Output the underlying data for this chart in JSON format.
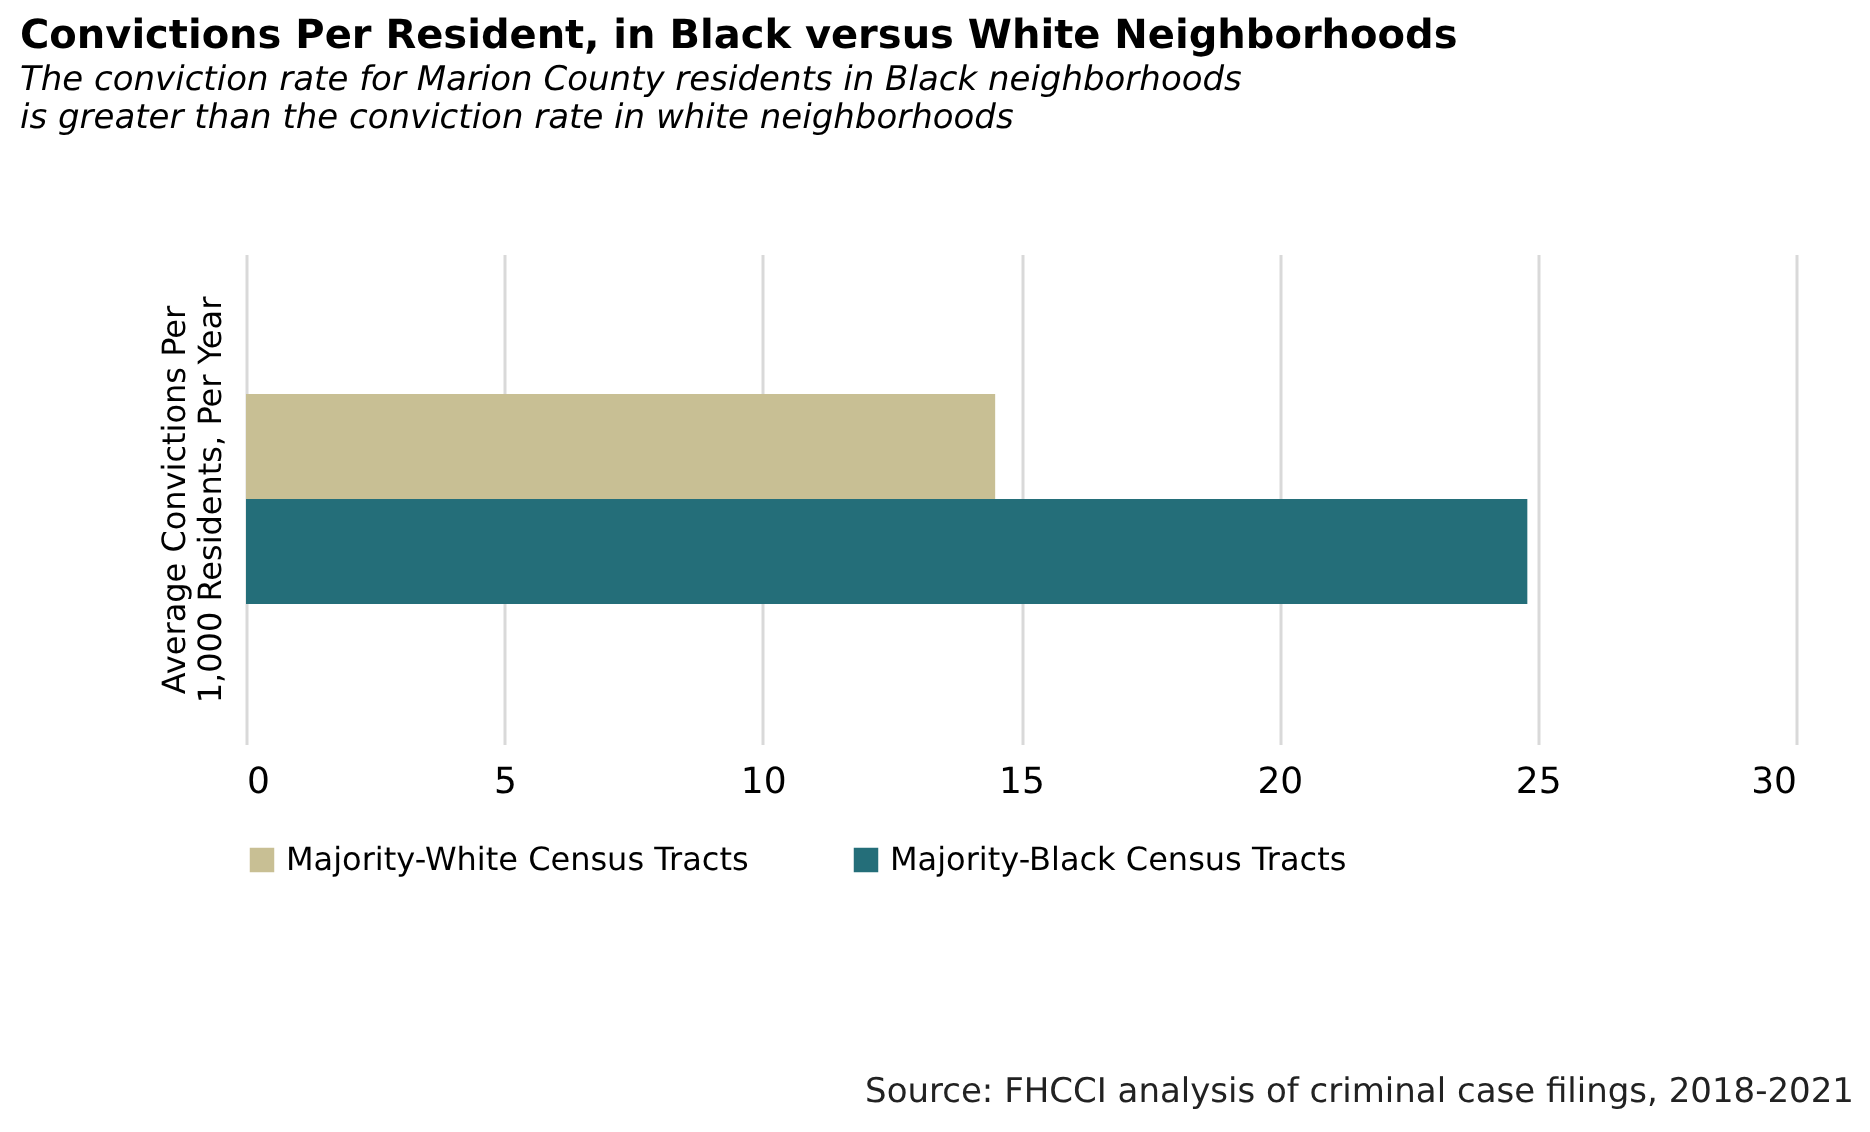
{
  "chart_data": {
    "type": "bar",
    "orientation": "horizontal",
    "title": "Convictions Per Resident, in Black versus White Neighborhoods",
    "subtitle": "The conviction rate for Marion County residents in Black neighborhoods is greater than the conviction rate in white neighborhoods",
    "ylabel": "Average Convictions Per 1,000 Residents, Per Year",
    "categories": [
      null
    ],
    "series": [
      {
        "name": "Majority-White Census Tracts",
        "color": "#c8bf94",
        "values": [
          14.5
        ]
      },
      {
        "name": "Majority-Black Census Tracts",
        "color": "#246e79",
        "values": [
          24.8
        ]
      }
    ],
    "xlim": [
      0,
      30
    ],
    "xticks": [
      0,
      5,
      10,
      15,
      20,
      25,
      30
    ],
    "grid": "x",
    "legend": "bottom",
    "annotations": [
      "Source: FHCCI analysis of criminal case filings, 2018-2021"
    ]
  }
}
